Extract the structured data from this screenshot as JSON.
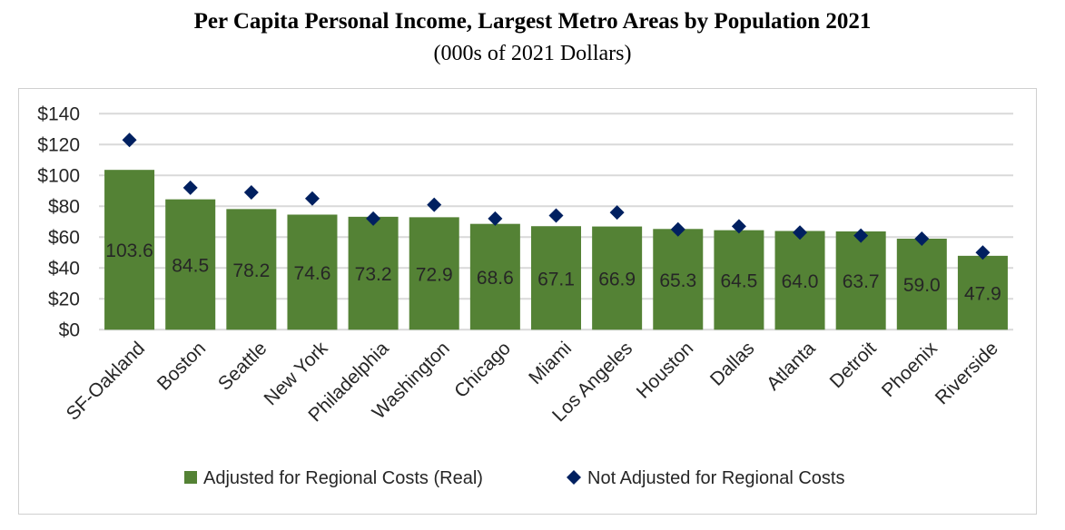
{
  "chart_data": {
    "type": "bar",
    "title": "Per Capita Personal Income, Largest Metro Areas by Population 2021",
    "subtitle": "(000s of 2021 Dollars)",
    "categories": [
      "SF-Oakland",
      "Boston",
      "Seattle",
      "New York",
      "Philadelphia",
      "Washington",
      "Chicago",
      "Miami",
      "Los Angeles",
      "Houston",
      "Dallas",
      "Atlanta",
      "Detroit",
      "Phoenix",
      "Riverside"
    ],
    "series": [
      {
        "name": "Adjusted for Regional Costs (Real)",
        "type": "bar",
        "color": "#548235",
        "values": [
          103.6,
          84.5,
          78.2,
          74.6,
          73.2,
          72.9,
          68.6,
          67.1,
          66.9,
          65.3,
          64.5,
          64.0,
          63.7,
          59.0,
          47.9
        ],
        "labels": [
          "103.6",
          "84.5",
          "78.2",
          "74.6",
          "73.2",
          "72.9",
          "68.6",
          "67.1",
          "66.9",
          "65.3",
          "64.5",
          "64.0",
          "63.7",
          "59.0",
          "47.9"
        ]
      },
      {
        "name": "Not Adjusted for Regional Costs",
        "type": "scatter",
        "marker": "diamond",
        "color": "#002060",
        "values": [
          123,
          92,
          89,
          85,
          72,
          81,
          72,
          74,
          76,
          65,
          67,
          63,
          61,
          59,
          50
        ]
      }
    ],
    "yticks": [
      "$0",
      "$20",
      "$40",
      "$60",
      "$80",
      "$100",
      "$120",
      "$140"
    ],
    "ylim": [
      0,
      140
    ],
    "grid": true,
    "legend": "bottom"
  }
}
